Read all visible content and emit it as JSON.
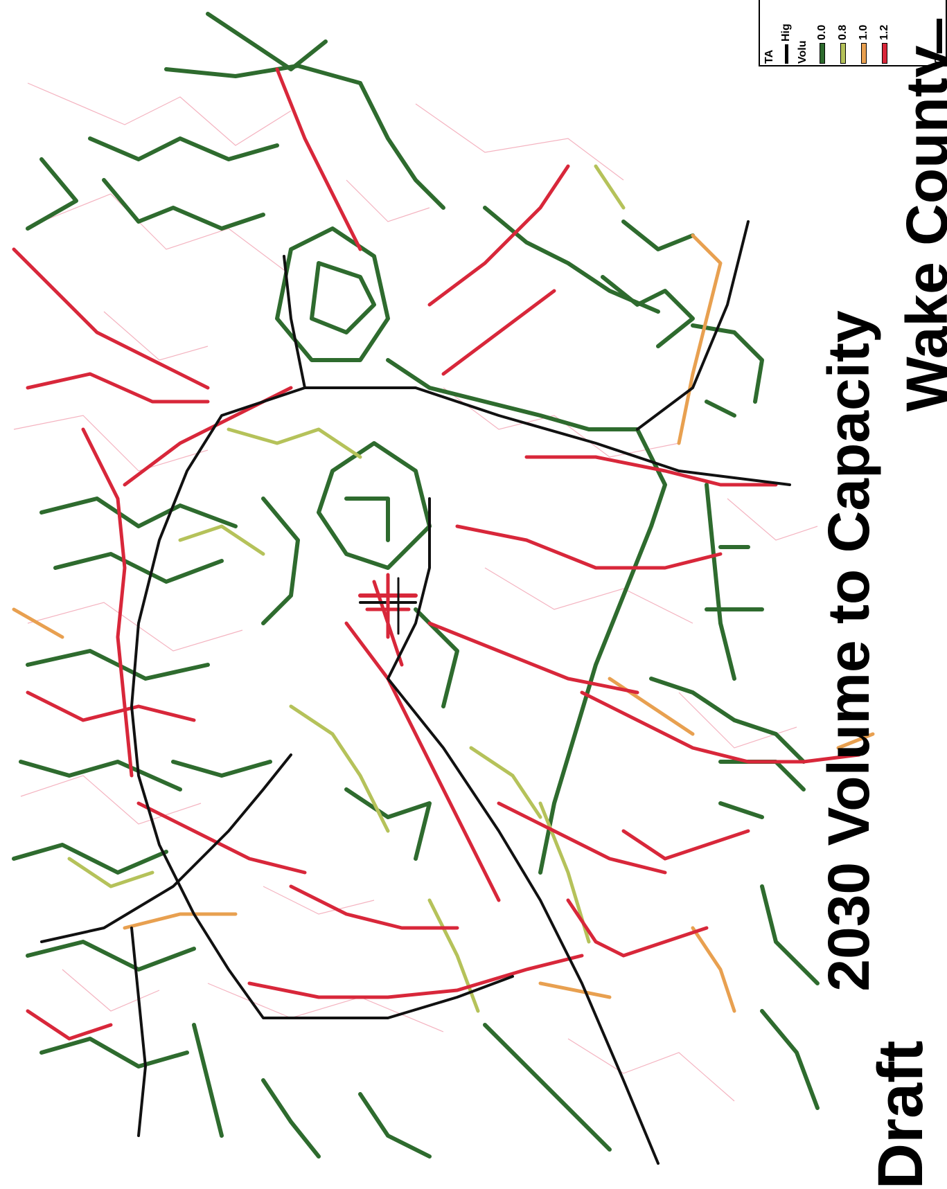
{
  "map": {
    "title": "2030 Volume to Capacity",
    "subtitle": "Wake County",
    "draft_label": "Draft",
    "colors": {
      "low": "#2e6b2e",
      "mid": "#b5c25a",
      "high": "#e8a050",
      "over": "#d8273a",
      "highway": "#111111",
      "minor": "#f0a0b0"
    }
  },
  "legend": {
    "heading": "TA",
    "highway_label": "Hig",
    "volume_label": "Volu",
    "classes": [
      {
        "label": "0.0",
        "color": "#2e6b2e"
      },
      {
        "label": "0.8",
        "color": "#b5c25a"
      },
      {
        "label": "1.0",
        "color": "#e8a050"
      },
      {
        "label": "1.2",
        "color": "#d8273a"
      }
    ],
    "scale_start": "0"
  }
}
